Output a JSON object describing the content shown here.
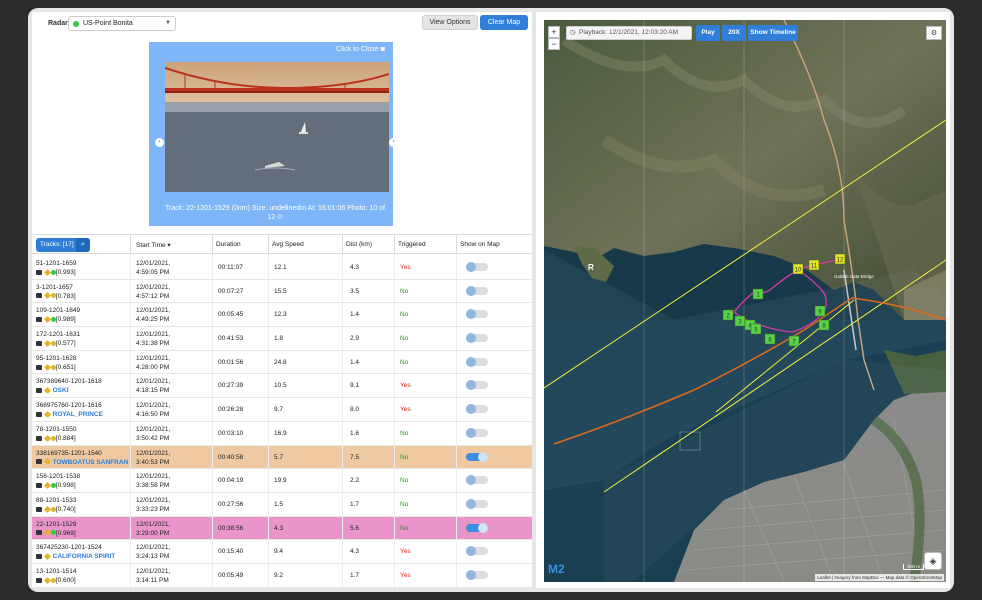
{
  "topbar": {
    "radar_label": "Radar:",
    "radar_value": "US-Point Bonita",
    "view_options": "View Options",
    "clear_map": "Clear Map"
  },
  "viewer": {
    "close_label": "Click to Close",
    "caption": "Track: 22-1201-1529 (0nm) Size: undefinedm At: 16:01:06 Photo: 10 of 12"
  },
  "table": {
    "tracks_button": "Tracks: [17]",
    "headers": {
      "start_time": "Start Time",
      "duration": "Duration",
      "avg_speed": "Avg Speed",
      "dist": "Dist (km)",
      "triggered": "Triggered",
      "show_on_map": "Show on Map"
    },
    "rows": [
      {
        "name": "51-1201-1659",
        "sub": "[0.993]",
        "dot": "green",
        "date": "12/01/2021,",
        "time": "4:59:05 PM",
        "duration": "00:11:07",
        "speed": "12.1",
        "dist": "4.3",
        "triggered": "Yes",
        "on": false,
        "hl": ""
      },
      {
        "name": "3-1201-1657",
        "sub": "[0.783]",
        "dot": "gold",
        "date": "12/01/2021,",
        "time": "4:57:12 PM",
        "duration": "00:07:27",
        "speed": "15.5",
        "dist": "3.5",
        "triggered": "No",
        "on": false,
        "hl": ""
      },
      {
        "name": "109-1201-1649",
        "sub": "[0.989]",
        "dot": "green",
        "date": "12/01/2021,",
        "time": "4:49:25 PM",
        "duration": "00:05:45",
        "speed": "12.3",
        "dist": "1.4",
        "triggered": "No",
        "on": false,
        "hl": ""
      },
      {
        "name": "172-1201-1631",
        "sub": "[0.577]",
        "dot": "gold",
        "date": "12/01/2021,",
        "time": "4:31:38 PM",
        "duration": "00:41:53",
        "speed": "1.8",
        "dist": "2.9",
        "triggered": "No",
        "on": false,
        "hl": ""
      },
      {
        "name": "95-1201-1628",
        "sub": "[0.651]",
        "dot": "gold",
        "date": "12/01/2021,",
        "time": "4:28:00 PM",
        "duration": "00:01:56",
        "speed": "24.8",
        "dist": "1.4",
        "triggered": "No",
        "on": false,
        "hl": ""
      },
      {
        "name": "367389640-1201-1618",
        "sub": "OSKI",
        "dot": "",
        "date": "12/01/2021,",
        "time": "4:18:15 PM",
        "duration": "00:27:39",
        "speed": "10.5",
        "dist": "9.1",
        "triggered": "Yes",
        "on": false,
        "hl": ""
      },
      {
        "name": "366975760-1201-1616",
        "sub": "ROYAL_PRINCE",
        "dot": "",
        "date": "12/01/2021,",
        "time": "4:16:50 PM",
        "duration": "00:26:28",
        "speed": "9.7",
        "dist": "8.0",
        "triggered": "Yes",
        "on": false,
        "hl": ""
      },
      {
        "name": "78-1201-1550",
        "sub": "[0.884]",
        "dot": "gold",
        "date": "12/01/2021,",
        "time": "3:50:42 PM",
        "duration": "00:03:10",
        "speed": "16.9",
        "dist": "1.6",
        "triggered": "No",
        "on": false,
        "hl": ""
      },
      {
        "name": "338169735-1201-1540",
        "sub": "TOWBOATUS SANFRAN",
        "dot": "",
        "date": "12/01/2021,",
        "time": "3:40:53 PM",
        "duration": "00:40:58",
        "speed": "5.7",
        "dist": "7.5",
        "triggered": "No",
        "on": true,
        "hl": "orange"
      },
      {
        "name": "156-1201-1538",
        "sub": "[0.998]",
        "dot": "green",
        "date": "12/01/2021,",
        "time": "3:38:58 PM",
        "duration": "00:04:19",
        "speed": "19.9",
        "dist": "2.2",
        "triggered": "No",
        "on": false,
        "hl": ""
      },
      {
        "name": "88-1201-1533",
        "sub": "[0.740]",
        "dot": "gold",
        "date": "12/01/2021,",
        "time": "3:33:23 PM",
        "duration": "00:27:56",
        "speed": "1.5",
        "dist": "1.7",
        "triggered": "No",
        "on": false,
        "hl": ""
      },
      {
        "name": "22-1201-1529",
        "sub": "[0.969]",
        "dot": "green",
        "date": "12/01/2021,",
        "time": "3:29:00 PM",
        "duration": "00:38:56",
        "speed": "4.3",
        "dist": "5.6",
        "triggered": "No",
        "on": true,
        "hl": "pink"
      },
      {
        "name": "367425230-1201-1524",
        "sub": "CALIFORNIA SPIRIT",
        "dot": "",
        "date": "12/01/2021,",
        "time": "3:24:13 PM",
        "duration": "00:15:40",
        "speed": "9.4",
        "dist": "4.3",
        "triggered": "Yes",
        "on": false,
        "hl": ""
      },
      {
        "name": "13-1201-1514",
        "sub": "[0.600]",
        "dot": "gold",
        "date": "12/01/2021,",
        "time": "3:14:11 PM",
        "duration": "00:05:49",
        "speed": "9.2",
        "dist": "1.7",
        "triggered": "Yes",
        "on": false,
        "hl": ""
      }
    ]
  },
  "map": {
    "playback": "Playback: 12/1/2021, 12:03:20 AM",
    "play": "Play",
    "speed": "20X",
    "show_timeline": "Show Timeline",
    "zoom_in": "+",
    "zoom_out": "−",
    "attribution": "Leaflet | Imagery from MapBox — Map data © OpenStreetMap",
    "scale": "500 m",
    "logo": "M2",
    "bridge_label": "Golden Gate Bridge",
    "markers": [
      "1",
      "2",
      "3",
      "4",
      "5",
      "6",
      "7",
      "8",
      "9",
      "10",
      "11",
      "12"
    ],
    "colors": {
      "track_pink": "#d63aa8",
      "track_orange": "#e06a1a",
      "fence_yellow": "#f2f03a",
      "marker_green": "#5bd14a",
      "marker_yellow": "#e9e02a"
    }
  }
}
